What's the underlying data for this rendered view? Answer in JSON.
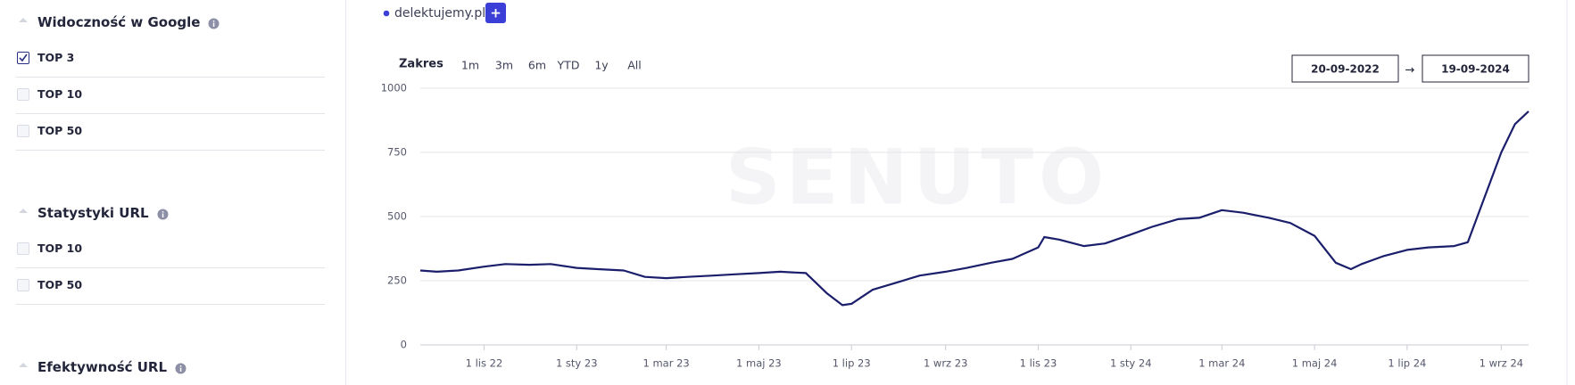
{
  "sidebar": {
    "sections": [
      {
        "title": "Widoczność w Google",
        "items": [
          {
            "label": "TOP 3",
            "checked": true
          },
          {
            "label": "TOP 10",
            "checked": false
          },
          {
            "label": "TOP 50",
            "checked": false
          }
        ]
      },
      {
        "title": "Statystyki URL",
        "items": [
          {
            "label": "TOP 10",
            "checked": false
          },
          {
            "label": "TOP 50",
            "checked": false
          }
        ]
      },
      {
        "title": "Efektywność URL",
        "items": []
      }
    ]
  },
  "toolbar": {
    "domain": "delektujemy.pl",
    "add_button": "+",
    "range_label": "Zakres",
    "ranges": [
      "1m",
      "3m",
      "6m",
      "YTD",
      "1y",
      "All"
    ],
    "date_from": "20-09-2022",
    "date_arrow": "→",
    "date_to": "19-09-2024"
  },
  "watermark": "SENUTO",
  "chart_data": {
    "type": "line",
    "series": [
      {
        "name": "delektujemy.pl",
        "color": "#1b1f6b",
        "x": [
          "2022-09-20",
          "2022-10-01",
          "2022-10-15",
          "2022-11-01",
          "2022-11-15",
          "2022-12-01",
          "2022-12-15",
          "2023-01-01",
          "2023-01-15",
          "2023-02-01",
          "2023-02-15",
          "2023-03-01",
          "2023-03-15",
          "2023-04-01",
          "2023-04-15",
          "2023-05-01",
          "2023-05-15",
          "2023-06-01",
          "2023-06-15",
          "2023-06-25",
          "2023-07-01",
          "2023-07-15",
          "2023-08-01",
          "2023-08-15",
          "2023-09-01",
          "2023-09-15",
          "2023-10-01",
          "2023-10-15",
          "2023-11-01",
          "2023-11-05",
          "2023-11-15",
          "2023-12-01",
          "2023-12-15",
          "2024-01-01",
          "2024-01-15",
          "2024-02-01",
          "2024-02-15",
          "2024-03-01",
          "2024-03-15",
          "2024-04-01",
          "2024-04-15",
          "2024-05-01",
          "2024-05-15",
          "2024-05-25",
          "2024-06-01",
          "2024-06-15",
          "2024-07-01",
          "2024-07-15",
          "2024-08-01",
          "2024-08-10",
          "2024-08-20",
          "2024-09-01",
          "2024-09-10",
          "2024-09-19"
        ],
        "values": [
          290,
          285,
          290,
          305,
          315,
          312,
          315,
          300,
          295,
          290,
          265,
          260,
          265,
          270,
          275,
          280,
          285,
          280,
          200,
          155,
          160,
          215,
          245,
          270,
          285,
          300,
          320,
          335,
          380,
          420,
          410,
          385,
          395,
          430,
          460,
          490,
          495,
          525,
          515,
          495,
          475,
          425,
          320,
          295,
          315,
          345,
          370,
          380,
          385,
          400,
          560,
          750,
          860,
          910
        ]
      }
    ],
    "xlim": [
      "2022-09-20",
      "2024-09-19"
    ],
    "xticks": [
      {
        "value": "2022-11-01",
        "label": "1 lis 22"
      },
      {
        "value": "2023-01-01",
        "label": "1 sty 23"
      },
      {
        "value": "2023-03-01",
        "label": "1 mar 23"
      },
      {
        "value": "2023-05-01",
        "label": "1 maj 23"
      },
      {
        "value": "2023-07-01",
        "label": "1 lip 23"
      },
      {
        "value": "2023-09-01",
        "label": "1 wrz 23"
      },
      {
        "value": "2023-11-01",
        "label": "1 lis 23"
      },
      {
        "value": "2024-01-01",
        "label": "1 sty 24"
      },
      {
        "value": "2024-03-01",
        "label": "1 mar 24"
      },
      {
        "value": "2024-05-01",
        "label": "1 maj 24"
      },
      {
        "value": "2024-07-01",
        "label": "1 lip 24"
      },
      {
        "value": "2024-09-01",
        "label": "1 wrz 24"
      }
    ],
    "ylim": [
      0,
      1000
    ],
    "yticks": [
      0,
      250,
      500,
      750,
      1000
    ],
    "grid": true
  }
}
